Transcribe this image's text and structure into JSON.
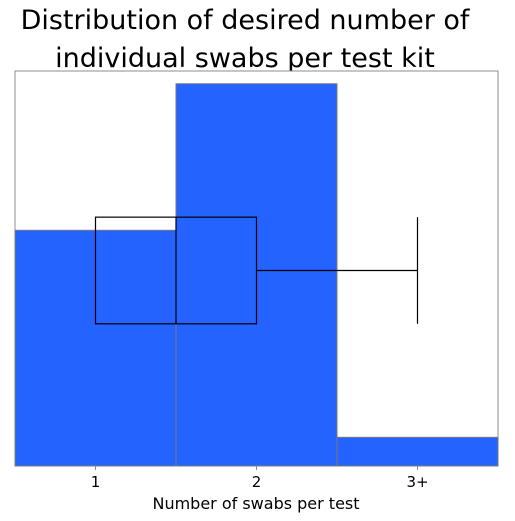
{
  "chart_data": {
    "type": "histogram",
    "title_lines": [
      "Distribution of desired number of",
      "individual swabs per test kit"
    ],
    "xlabel": "Number of swabs per test",
    "ylabel": "",
    "categories": [
      "1",
      "2",
      "3+"
    ],
    "values": [
      37.0,
      60.0,
      4.5
    ],
    "ylim": [
      0,
      62
    ],
    "bar_color": "#2563ff",
    "box_plot": {
      "axis_range": [
        0.5,
        3.5
      ],
      "q1": 1.0,
      "median": 1.5,
      "q3": 2.0,
      "whisker_low": 1.0,
      "whisker_high": 3.0
    }
  }
}
